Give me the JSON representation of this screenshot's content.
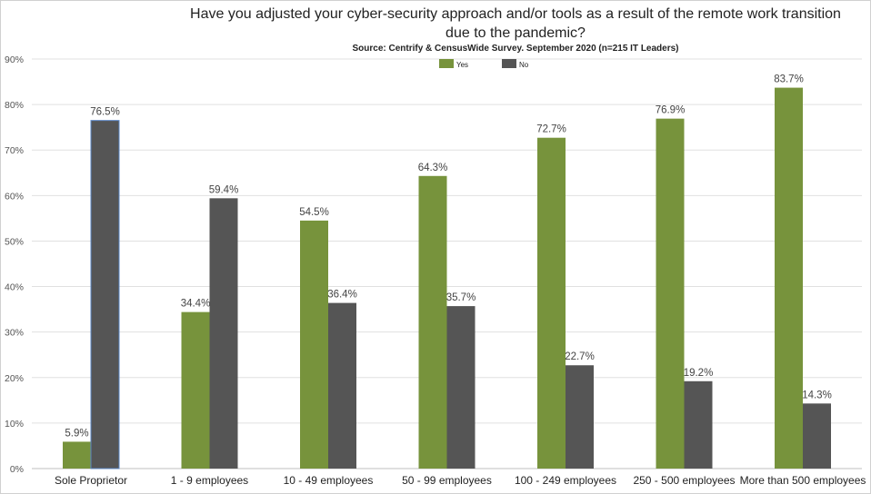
{
  "chart_data": {
    "type": "bar",
    "title_line1": "Have you adjusted your cyber-security approach and/or tools as a result of the remote work transition",
    "title_line2": "due to the pandemic?",
    "subtitle": "Source: Centrify & CensusWide Survey. September 2020 (n=215 IT Leaders)",
    "categories": [
      "Sole Proprietor",
      "1 - 9 employees",
      "10 - 49 employees",
      "50 - 99 employees",
      "100 - 249 employees",
      "250 - 500 employees",
      "More than 500 employees"
    ],
    "series": [
      {
        "name": "Yes",
        "color": "#77933c",
        "values": [
          5.9,
          34.4,
          54.5,
          64.3,
          72.7,
          76.9,
          83.7
        ],
        "labels": [
          "5.9%",
          "34.4%",
          "54.5%",
          "64.3%",
          "72.7%",
          "76.9%",
          "83.7%"
        ]
      },
      {
        "name": "No",
        "color": "#555555",
        "values": [
          76.5,
          59.4,
          36.4,
          35.7,
          22.7,
          19.2,
          14.3
        ],
        "labels": [
          "76.5%",
          "59.4%",
          "36.4%",
          "35.7%",
          "22.7%",
          "19.2%",
          "14.3%"
        ]
      }
    ],
    "ylim": [
      0,
      90
    ],
    "yticks": [
      "0%",
      "10%",
      "20%",
      "30%",
      "40%",
      "50%",
      "60%",
      "70%",
      "80%",
      "90%"
    ],
    "grid": true,
    "legend_position": "top-center"
  }
}
